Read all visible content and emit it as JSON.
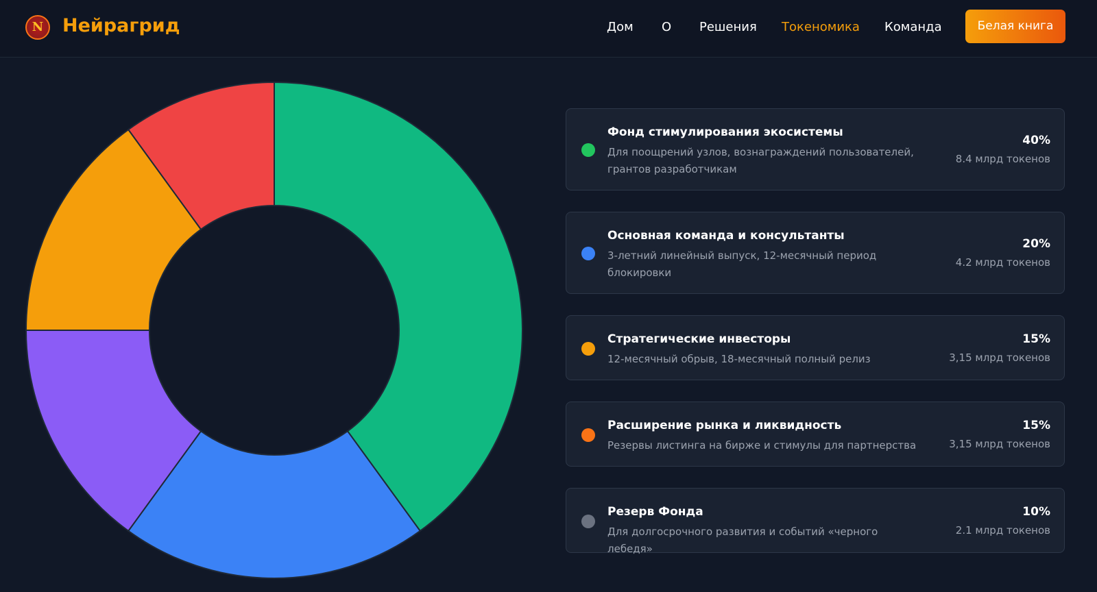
{
  "header": {
    "logo_letter": "N",
    "brand": "Нейрагрид",
    "nav": [
      "Дом",
      "О",
      "Решения",
      "Токеномика",
      "Команда"
    ],
    "active_nav": 3,
    "button": "Белая книга"
  },
  "chart_data": {
    "type": "pie",
    "categories": [
      "Фонд стимулирования экосистемы",
      "Основная команда и консультанты",
      "Стратегические инвесторы",
      "Расширение рынка и ликвидность",
      "Резерв Фонда"
    ],
    "values": [
      40,
      20,
      15,
      15,
      10
    ],
    "value_labels": [
      "40%",
      "20%",
      "15%",
      "15%",
      "10%"
    ],
    "colors": [
      "#10b981",
      "#3b82f6",
      "#8b5cf6",
      "#f59e0b",
      "#ef4444"
    ]
  },
  "allocations": [
    {
      "description": "Для поощрений узлов, вознаграждений пользователей, грантов разработчикам",
      "tokens": "8.4 млрд токенов",
      "dot_color": "#22c55e"
    },
    {
      "description": "3-летний линейный выпуск, 12-месячный период блокировки",
      "tokens": "4.2 млрд токенов",
      "dot_color": "#3b82f6"
    },
    {
      "description": "12-месячный обрыв, 18-месячный полный релиз",
      "tokens": "3,15 млрд токенов",
      "dot_color": "#f59e0b"
    },
    {
      "description": "Резервы листинга на бирже и стимулы для партнерства",
      "tokens": "3,15 млрд токенов",
      "dot_color": "#f97316"
    },
    {
      "description": "Для долгосрочного развития и событий «черного лебедя»",
      "tokens": "2.1 млрд токенов",
      "dot_color": "#6b7280"
    }
  ]
}
